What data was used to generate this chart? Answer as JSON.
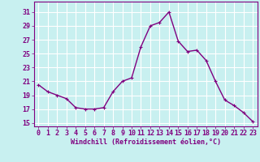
{
  "x": [
    0,
    1,
    2,
    3,
    4,
    5,
    6,
    7,
    8,
    9,
    10,
    11,
    12,
    13,
    14,
    15,
    16,
    17,
    18,
    19,
    20,
    21,
    22,
    23
  ],
  "y": [
    20.5,
    19.5,
    19.0,
    18.5,
    17.2,
    17.0,
    17.0,
    17.2,
    19.5,
    21.0,
    21.5,
    26.0,
    29.0,
    29.5,
    31.0,
    26.8,
    25.3,
    25.5,
    24.0,
    21.0,
    18.3,
    17.5,
    16.5,
    15.2
  ],
  "line_color": "#800080",
  "marker": "+",
  "bg_color": "#c8f0f0",
  "grid_color": "#ffffff",
  "ylabel_values": [
    15,
    17,
    19,
    21,
    23,
    25,
    27,
    29,
    31
  ],
  "xlabel_values": [
    0,
    1,
    2,
    3,
    4,
    5,
    6,
    7,
    8,
    9,
    10,
    11,
    12,
    13,
    14,
    15,
    16,
    17,
    18,
    19,
    20,
    21,
    22,
    23
  ],
  "xlabel": "Windchill (Refroidissement éolien,°C)",
  "ylim": [
    14.5,
    32.5
  ],
  "xlim": [
    -0.5,
    23.5
  ],
  "axis_label_color": "#800080",
  "tick_label_color": "#800080",
  "font_size_xlabel": 6,
  "font_size_ticks": 6,
  "linewidth": 1.0,
  "markersize": 3
}
